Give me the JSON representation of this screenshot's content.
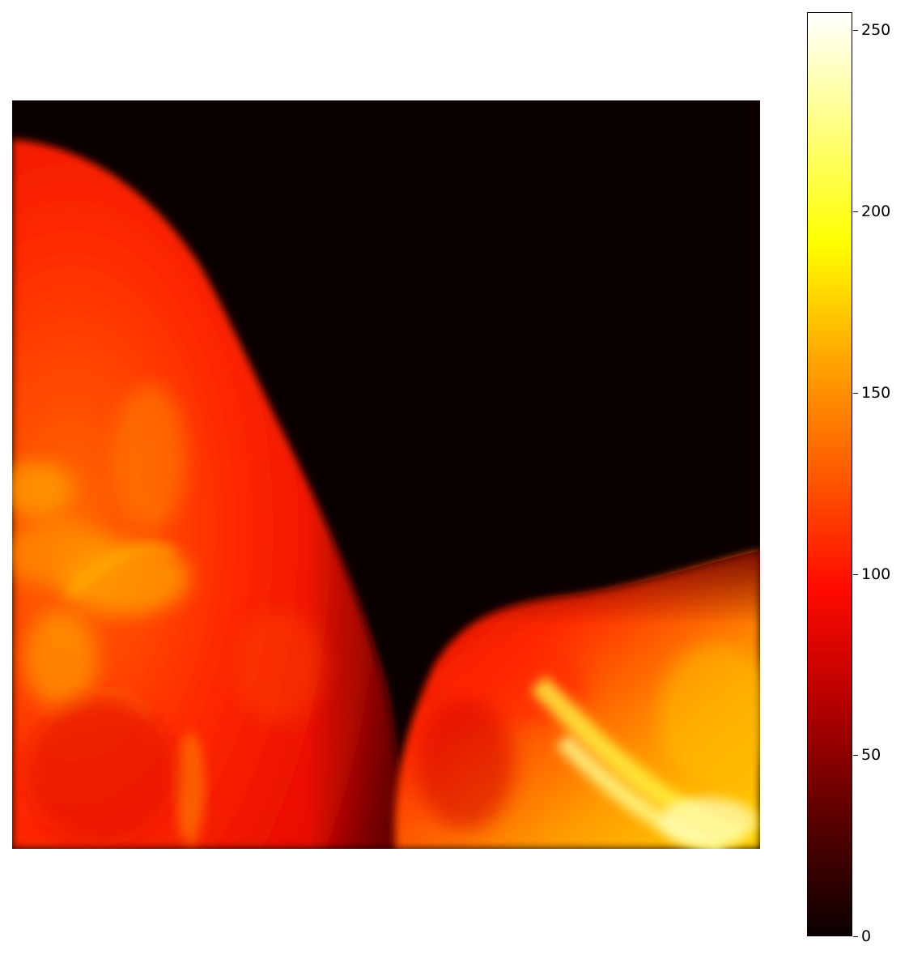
{
  "figure": {
    "colormap": "hot",
    "colormap_stops": [
      "#0b0000",
      "#5a0000",
      "#b40000",
      "#ff0a00",
      "#ff5a00",
      "#ffa500",
      "#ffff00",
      "#ffff80",
      "#ffffff"
    ],
    "background_color": "#ffffff"
  },
  "colorbar": {
    "min": 0,
    "max": 255,
    "ticks": [
      {
        "value": 0,
        "label": "0"
      },
      {
        "value": 50,
        "label": "50"
      },
      {
        "value": 100,
        "label": "100"
      },
      {
        "value": 150,
        "label": "150"
      },
      {
        "value": 200,
        "label": "200"
      },
      {
        "value": 250,
        "label": "250"
      }
    ]
  }
}
